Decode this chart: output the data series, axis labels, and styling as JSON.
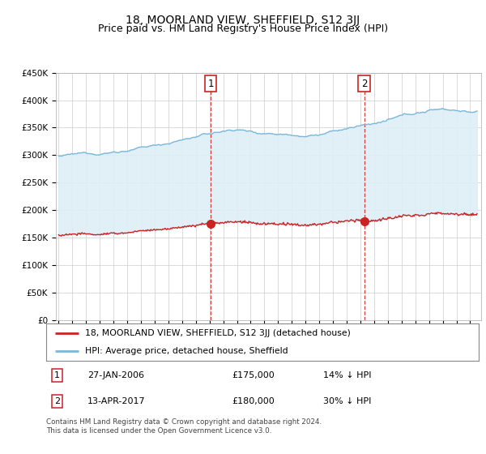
{
  "title": "18, MOORLAND VIEW, SHEFFIELD, S12 3JJ",
  "subtitle": "Price paid vs. HM Land Registry's House Price Index (HPI)",
  "hpi_color": "#7ab8d9",
  "hpi_fill_color": "#deeef7",
  "price_color": "#cc2222",
  "dashed_color": "#cc2222",
  "bg_color": "#ffffff",
  "grid_color": "#cccccc",
  "ylim": [
    0,
    450000
  ],
  "yticks": [
    0,
    50000,
    100000,
    150000,
    200000,
    250000,
    300000,
    350000,
    400000,
    450000
  ],
  "ytick_labels": [
    "£0",
    "£50K",
    "£100K",
    "£150K",
    "£200K",
    "£250K",
    "£300K",
    "£350K",
    "£400K",
    "£450K"
  ],
  "sale1_year": 2006.08,
  "sale1_price": 175000,
  "sale2_year": 2017.28,
  "sale2_price": 180000,
  "legend_line1": "18, MOORLAND VIEW, SHEFFIELD, S12 3JJ (detached house)",
  "legend_line2": "HPI: Average price, detached house, Sheffield",
  "footer": "Contains HM Land Registry data © Crown copyright and database right 2024.\nThis data is licensed under the Open Government Licence v3.0.",
  "title_fontsize": 10,
  "subtitle_fontsize": 9,
  "tick_fontsize": 7.5
}
